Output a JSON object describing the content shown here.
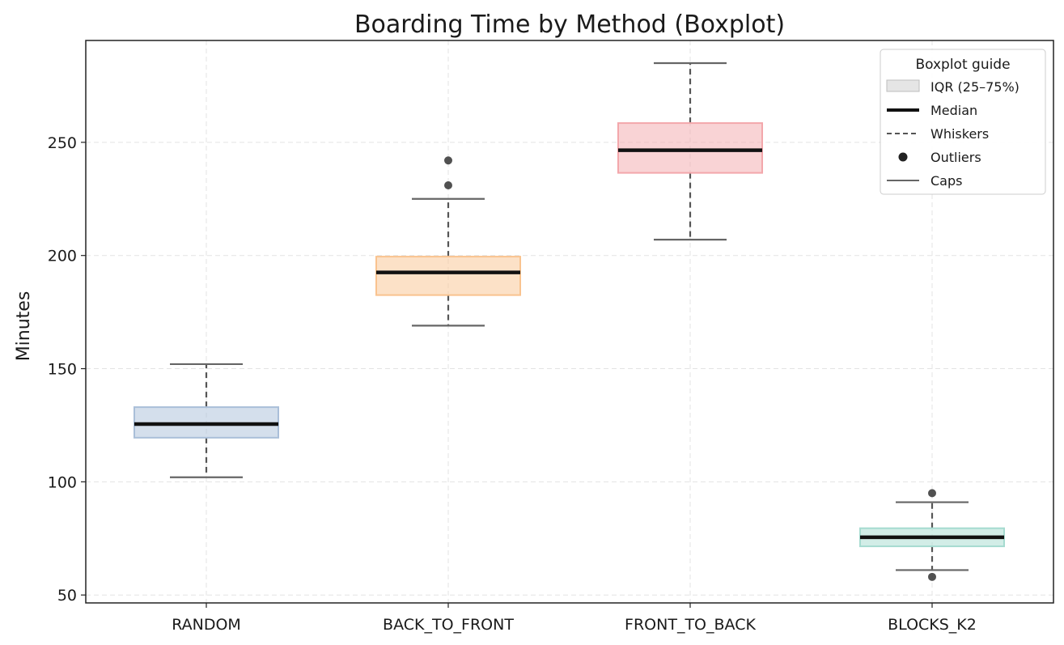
{
  "chart_data": {
    "type": "boxplot",
    "title": "Boarding Time by Method (Boxplot)",
    "xlabel": "",
    "ylabel": "Minutes",
    "ylim": [
      46.5,
      295
    ],
    "yticks": [
      50,
      100,
      150,
      200,
      250
    ],
    "grid": true,
    "legend_position": "top-right",
    "categories": [
      "RANDOM",
      "BACK_TO_FRONT",
      "FRONT_TO_BACK",
      "BLOCKS_K2"
    ],
    "boxes": [
      {
        "category": "RANDOM",
        "whisker_low": 102,
        "q1": 119.5,
        "median": 125.5,
        "q3": 133,
        "whisker_high": 152,
        "outliers": [],
        "color": "#aabfd9"
      },
      {
        "category": "BACK_TO_FRONT",
        "whisker_low": 169,
        "q1": 182.5,
        "median": 192.5,
        "q3": 199.5,
        "whisker_high": 225,
        "outliers": [
          231,
          242
        ],
        "color": "#f9c38f"
      },
      {
        "category": "FRONT_TO_BACK",
        "whisker_low": 207,
        "q1": 236.5,
        "median": 246.5,
        "q3": 258.5,
        "whisker_high": 285,
        "outliers": [],
        "color": "#f3a7ab"
      },
      {
        "category": "BLOCKS_K2",
        "whisker_low": 61,
        "q1": 71.5,
        "median": 75.5,
        "q3": 79.5,
        "whisker_high": 91,
        "outliers": [
          58,
          95
        ],
        "color": "#a6dbd0"
      }
    ],
    "legend": {
      "title": "Boxplot guide",
      "entries": [
        {
          "key": "iqr",
          "label": "IQR (25–75%)"
        },
        {
          "key": "median",
          "label": "Median"
        },
        {
          "key": "whiskers",
          "label": "Whiskers"
        },
        {
          "key": "outliers",
          "label": "Outliers"
        },
        {
          "key": "caps",
          "label": "Caps"
        }
      ]
    }
  }
}
